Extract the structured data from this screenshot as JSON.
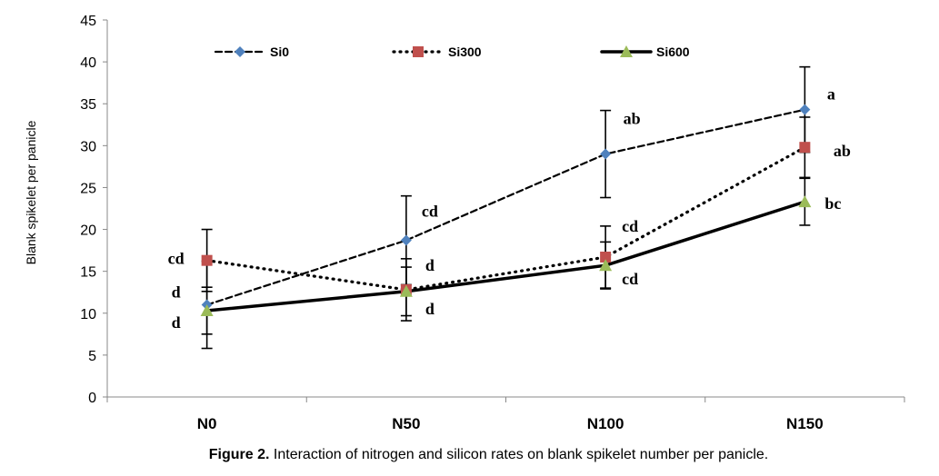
{
  "chart_data": {
    "type": "line",
    "title": "",
    "xlabel": "",
    "ylabel": "Blank spikelet per panicle",
    "ylim": [
      0,
      45
    ],
    "ystep": 5,
    "yticks": [
      "0",
      "5",
      "10",
      "15",
      "20",
      "25",
      "30",
      "35",
      "40",
      "45"
    ],
    "categories": [
      "N0",
      "N50",
      "N100",
      "N150"
    ],
    "legend_position": "top",
    "grid": false,
    "series": [
      {
        "name": "Si0",
        "style": "dashed",
        "marker": "diamond",
        "color": "#4F81BD",
        "values": [
          11.0,
          18.7,
          29.0,
          34.3
        ],
        "error": [
          5.2,
          5.3,
          5.2,
          5.1
        ],
        "letters": [
          "d",
          "cd",
          "ab",
          "a"
        ]
      },
      {
        "name": "Si300",
        "style": "dotted",
        "marker": "square",
        "color": "#C0504D",
        "values": [
          16.3,
          12.8,
          16.7,
          29.8
        ],
        "error": [
          3.7,
          3.7,
          3.7,
          3.6
        ],
        "letters": [
          "cd",
          "d",
          "cd",
          "ab"
        ]
      },
      {
        "name": "Si600",
        "style": "solid",
        "marker": "triangle",
        "color": "#9BBB59",
        "values": [
          10.3,
          12.6,
          15.7,
          23.3
        ],
        "error": [
          2.8,
          2.9,
          2.8,
          2.8
        ],
        "letters": [
          "d",
          "d",
          "cd",
          "bc"
        ]
      }
    ]
  },
  "caption": {
    "label": "Figure 2.",
    "text": " Interaction of nitrogen and silicon rates on blank spikelet number per panicle."
  }
}
